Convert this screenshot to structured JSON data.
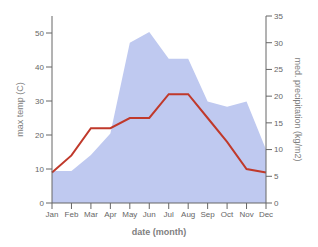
{
  "chart_data": {
    "type": "line",
    "categories": [
      "Jan",
      "Feb",
      "Mar",
      "Apr",
      "May",
      "Jun",
      "Jul",
      "Aug",
      "Sep",
      "Oct",
      "Nov",
      "Dec"
    ],
    "xlabel": "date (month)",
    "ylabel": "max temp (C)",
    "y2label": "med. precipitation (kg/m2)",
    "ylim": [
      0,
      55
    ],
    "yticks": [
      0,
      10,
      20,
      30,
      40,
      50
    ],
    "y2lim": [
      0,
      35
    ],
    "y2ticks": [
      0,
      5,
      10,
      15,
      20,
      25,
      30,
      35
    ],
    "series": [
      {
        "type": "area",
        "axis": "y2",
        "color": "#bfc9f0",
        "values": [
          6,
          6,
          9,
          13,
          30,
          32,
          27,
          27,
          19,
          18,
          19,
          10
        ]
      },
      {
        "type": "line",
        "color": "#c0392b",
        "values": [
          9,
          14,
          22,
          22,
          25,
          25,
          32,
          32,
          25,
          18,
          10,
          9
        ]
      }
    ]
  }
}
